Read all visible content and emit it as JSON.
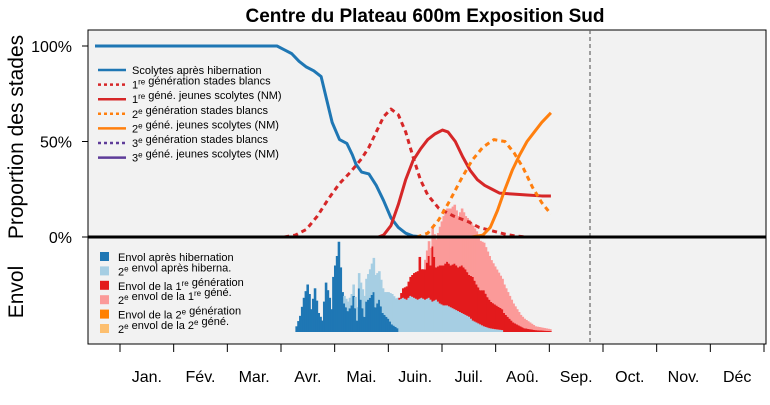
{
  "chart_data": {
    "type": "line",
    "title": "Centre du Plateau 600m Exposition Sud",
    "ylabel_top": "Proportion des stades",
    "ylabel_bottom": "Envol",
    "month_labels": [
      "Jan.",
      "Fév.",
      "Mar.",
      "Avr.",
      "Mai.",
      "Juin.",
      "Juil.",
      "Aoû.",
      "Sep.",
      "Oct.",
      "Nov.",
      "Déc"
    ],
    "ytick_labels": [
      "100%",
      "50%",
      "0%"
    ],
    "ylim": [
      0,
      100
    ],
    "xlim_days": [
      1,
      366
    ],
    "x_unit": "jour de l'année",
    "current_day": 249,
    "grid": false,
    "legend_top": [
      {
        "pre": "Scolytes après hibernation",
        "sup": "",
        "post": "",
        "color": "#1f77b4",
        "dash": "solid"
      },
      {
        "pre": "1",
        "sup": "re",
        "post": " génération stades blancs",
        "color": "#d62728",
        "dash": "dotted"
      },
      {
        "pre": "1",
        "sup": "re",
        "post": " géné. jeunes scolytes (NM)",
        "color": "#d62728",
        "dash": "solid"
      },
      {
        "pre": "2",
        "sup": "e",
        "post": " génération stades blancs",
        "color": "#ff7f0e",
        "dash": "dotted"
      },
      {
        "pre": "2",
        "sup": "e",
        "post": " géné. jeunes scolytes (NM)",
        "color": "#ff7f0e",
        "dash": "solid"
      },
      {
        "pre": "3",
        "sup": "e",
        "post": " génération stades blancs",
        "color": "#5e3c99",
        "dash": "dotted"
      },
      {
        "pre": "3",
        "sup": "e",
        "post": " géné. jeunes scolytes (NM)",
        "color": "#5e3c99",
        "dash": "solid"
      }
    ],
    "legend_bottom": [
      {
        "pre": "Envol après hibernation",
        "sup": "",
        "post": "",
        "color": "#1f77b4"
      },
      {
        "pre": "2",
        "sup": "e",
        "post": " envol après hiberna.",
        "color": "#a6cee3"
      },
      {
        "pre": "Envol de la 1",
        "sup": "re",
        "post": " génération",
        "color": "#e31a1c"
      },
      {
        "pre": "2",
        "sup": "e",
        "post": " envol de la 1",
        "sup2": "re",
        "post2": " géné.",
        "color": "#fb9a99"
      },
      {
        "pre": "Envol de la 2",
        "sup": "e",
        "post": " génération",
        "color": "#ff7f00"
      },
      {
        "pre": "2",
        "sup": "e",
        "post": " envol de la 2",
        "sup2": "e",
        "post2": " géné.",
        "color": "#fdbf6f"
      }
    ],
    "series": [
      {
        "key": "hib",
        "color": "#1f77b4",
        "dash": "solid",
        "points": [
          [
            1,
            100
          ],
          [
            100,
            100
          ],
          [
            104,
            98
          ],
          [
            108,
            96
          ],
          [
            112,
            92
          ],
          [
            116,
            89
          ],
          [
            120,
            87
          ],
          [
            124,
            84
          ],
          [
            127,
            72
          ],
          [
            130,
            60
          ],
          [
            134,
            51
          ],
          [
            138,
            49
          ],
          [
            141,
            43
          ],
          [
            143,
            38
          ],
          [
            146,
            34
          ],
          [
            150,
            33
          ],
          [
            154,
            27
          ],
          [
            158,
            19
          ],
          [
            162,
            10
          ],
          [
            166,
            5
          ],
          [
            170,
            2
          ],
          [
            174,
            0.5
          ],
          [
            180,
            0
          ]
        ]
      },
      {
        "key": "g1_blanc",
        "color": "#d62728",
        "dash": "dotted",
        "points": [
          [
            104,
            0
          ],
          [
            110,
            1
          ],
          [
            116,
            4
          ],
          [
            122,
            11
          ],
          [
            128,
            20
          ],
          [
            134,
            28
          ],
          [
            140,
            34
          ],
          [
            146,
            41
          ],
          [
            150,
            47
          ],
          [
            154,
            55
          ],
          [
            158,
            63
          ],
          [
            162,
            67
          ],
          [
            166,
            64
          ],
          [
            170,
            55
          ],
          [
            174,
            42
          ],
          [
            178,
            30
          ],
          [
            182,
            22
          ],
          [
            188,
            15
          ],
          [
            196,
            11
          ],
          [
            204,
            8
          ],
          [
            210,
            5
          ],
          [
            218,
            3
          ],
          [
            224,
            1.5
          ],
          [
            230,
            0.5
          ],
          [
            236,
            0
          ]
        ]
      },
      {
        "key": "g1_nm",
        "color": "#d62728",
        "dash": "solid",
        "points": [
          [
            155,
            0
          ],
          [
            158,
            1
          ],
          [
            162,
            6
          ],
          [
            166,
            17
          ],
          [
            170,
            30
          ],
          [
            174,
            40
          ],
          [
            178,
            46
          ],
          [
            182,
            51
          ],
          [
            186,
            54
          ],
          [
            190,
            56
          ],
          [
            193,
            55
          ],
          [
            197,
            50
          ],
          [
            201,
            42
          ],
          [
            205,
            35
          ],
          [
            209,
            30
          ],
          [
            213,
            27
          ],
          [
            217,
            25
          ],
          [
            221,
            23
          ],
          [
            228,
            22.5
          ],
          [
            236,
            22
          ],
          [
            244,
            21.5
          ],
          [
            249,
            21.5
          ]
        ]
      },
      {
        "key": "g2_blanc",
        "color": "#ff7f0e",
        "dash": "dotted",
        "points": [
          [
            176,
            0
          ],
          [
            182,
            2
          ],
          [
            188,
            9
          ],
          [
            194,
            19
          ],
          [
            200,
            30
          ],
          [
            206,
            40
          ],
          [
            212,
            47
          ],
          [
            218,
            51
          ],
          [
            224,
            50
          ],
          [
            229,
            44
          ],
          [
            234,
            36
          ],
          [
            239,
            26
          ],
          [
            244,
            18
          ],
          [
            249,
            12
          ]
        ]
      },
      {
        "key": "g2_nm",
        "color": "#ff7f0e",
        "dash": "solid",
        "points": [
          [
            206,
            0
          ],
          [
            212,
            1
          ],
          [
            216,
            5
          ],
          [
            220,
            14
          ],
          [
            224,
            25
          ],
          [
            228,
            35
          ],
          [
            232,
            43
          ],
          [
            236,
            50
          ],
          [
            240,
            55
          ],
          [
            244,
            60
          ],
          [
            249,
            65
          ]
        ]
      },
      {
        "key": "g3_blanc",
        "color": "#5e3c99",
        "dash": "dotted",
        "points": []
      },
      {
        "key": "g3_nm",
        "color": "#5e3c99",
        "dash": "solid",
        "points": []
      }
    ],
    "flight_series": [
      {
        "key": "env_hib",
        "color": "#1f77b4",
        "points": [
          [
            110,
            6
          ],
          [
            112,
            17
          ],
          [
            114,
            36
          ],
          [
            116,
            50
          ],
          [
            117,
            40
          ],
          [
            118,
            24
          ],
          [
            120,
            46
          ],
          [
            122,
            20
          ],
          [
            124,
            12
          ],
          [
            126,
            52
          ],
          [
            128,
            36
          ],
          [
            129,
            24
          ],
          [
            130,
            58
          ],
          [
            131,
            70
          ],
          [
            132,
            80
          ],
          [
            133,
            95
          ],
          [
            134,
            68
          ],
          [
            135,
            42
          ],
          [
            136,
            30
          ],
          [
            138,
            22
          ],
          [
            140,
            28
          ],
          [
            141,
            38
          ],
          [
            143,
            12
          ],
          [
            144,
            46
          ],
          [
            145,
            34
          ],
          [
            147,
            16
          ],
          [
            148,
            32
          ],
          [
            150,
            36
          ],
          [
            152,
            42
          ],
          [
            153,
            26
          ],
          [
            155,
            34
          ],
          [
            157,
            20
          ],
          [
            160,
            14
          ],
          [
            162,
            8
          ],
          [
            165,
            4
          ]
        ]
      },
      {
        "key": "env_hib2",
        "color": "#a6cee3",
        "points": [
          [
            136,
            8
          ],
          [
            138,
            10
          ],
          [
            140,
            12
          ],
          [
            142,
            12
          ],
          [
            145,
            18
          ],
          [
            148,
            24
          ],
          [
            150,
            30
          ],
          [
            152,
            36
          ],
          [
            154,
            32
          ],
          [
            156,
            28
          ],
          [
            158,
            24
          ],
          [
            160,
            28
          ],
          [
            162,
            32
          ],
          [
            164,
            30
          ],
          [
            166,
            34
          ],
          [
            168,
            36
          ],
          [
            170,
            34
          ],
          [
            172,
            38
          ],
          [
            174,
            36
          ],
          [
            176,
            34
          ],
          [
            178,
            36
          ],
          [
            180,
            34
          ],
          [
            182,
            36
          ],
          [
            184,
            32
          ],
          [
            186,
            34
          ],
          [
            188,
            30
          ],
          [
            190,
            28
          ],
          [
            192,
            28
          ],
          [
            194,
            26
          ],
          [
            196,
            24
          ],
          [
            198,
            22
          ],
          [
            200,
            20
          ],
          [
            202,
            18
          ],
          [
            204,
            16
          ],
          [
            206,
            12
          ],
          [
            208,
            10
          ],
          [
            210,
            8
          ],
          [
            212,
            6
          ],
          [
            215,
            4
          ],
          [
            218,
            3
          ],
          [
            222,
            2
          ]
        ]
      },
      {
        "key": "env_g1",
        "color": "#e31a1c",
        "points": [
          [
            166,
            2
          ],
          [
            168,
            10
          ],
          [
            170,
            14
          ],
          [
            172,
            20
          ],
          [
            174,
            26
          ],
          [
            176,
            30
          ],
          [
            177,
            44
          ],
          [
            178,
            30
          ],
          [
            180,
            32
          ],
          [
            182,
            44
          ],
          [
            183,
            36
          ],
          [
            184,
            58
          ],
          [
            186,
            34
          ],
          [
            188,
            40
          ],
          [
            190,
            42
          ],
          [
            192,
            46
          ],
          [
            194,
            44
          ],
          [
            196,
            48
          ],
          [
            198,
            46
          ],
          [
            200,
            50
          ],
          [
            202,
            48
          ],
          [
            204,
            44
          ],
          [
            206,
            46
          ],
          [
            208,
            40
          ],
          [
            210,
            36
          ],
          [
            212,
            38
          ],
          [
            214,
            32
          ],
          [
            216,
            28
          ],
          [
            218,
            26
          ],
          [
            220,
            24
          ],
          [
            222,
            22
          ],
          [
            224,
            18
          ],
          [
            226,
            14
          ],
          [
            228,
            10
          ],
          [
            230,
            8
          ],
          [
            232,
            6
          ],
          [
            234,
            4
          ],
          [
            237,
            3
          ],
          [
            240,
            2
          ],
          [
            244,
            1.5
          ],
          [
            248,
            1
          ]
        ]
      },
      {
        "key": "env_g1_2",
        "color": "#fb9a99",
        "points": [
          [
            180,
            10
          ],
          [
            185,
            24
          ],
          [
            190,
            52
          ],
          [
            194,
            60
          ],
          [
            196,
            62
          ],
          [
            198,
            54
          ],
          [
            200,
            60
          ],
          [
            202,
            56
          ],
          [
            204,
            58
          ],
          [
            206,
            54
          ],
          [
            208,
            56
          ],
          [
            210,
            52
          ],
          [
            212,
            50
          ],
          [
            214,
            48
          ],
          [
            216,
            44
          ],
          [
            218,
            40
          ],
          [
            220,
            36
          ],
          [
            222,
            32
          ],
          [
            224,
            28
          ],
          [
            226,
            24
          ],
          [
            228,
            20
          ],
          [
            230,
            16
          ],
          [
            232,
            12
          ],
          [
            234,
            10
          ],
          [
            236,
            8
          ],
          [
            238,
            6
          ],
          [
            240,
            4
          ],
          [
            244,
            3
          ],
          [
            248,
            2
          ]
        ]
      },
      {
        "key": "env_g2",
        "color": "#ff7f00",
        "points": []
      },
      {
        "key": "env_g2_2",
        "color": "#fdbf6f",
        "points": []
      }
    ]
  }
}
